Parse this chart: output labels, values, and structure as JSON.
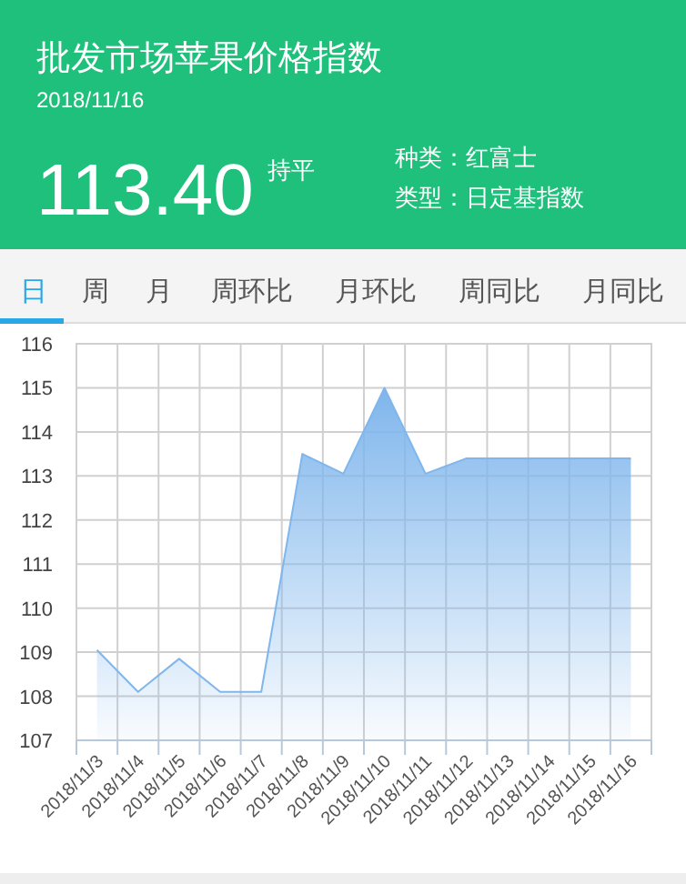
{
  "chart_data": {
    "type": "area",
    "title": "批发市场苹果价格指数",
    "subtitle": "2018/11/16",
    "annotations": [
      "113.40",
      "持平",
      "种类：红富士",
      "类型：日定基指数",
      "日",
      "周",
      "月",
      "周环比",
      "月环比",
      "周同比",
      "月同比"
    ],
    "categories": [
      "2018/11/3",
      "2018/11/4",
      "2018/11/5",
      "2018/11/6",
      "2018/11/7",
      "2018/11/8",
      "2018/11/9",
      "2018/11/10",
      "2018/11/11",
      "2018/11/12",
      "2018/11/13",
      "2018/11/14",
      "2018/11/15",
      "2018/11/16"
    ],
    "series": [
      {
        "color": "#7fb6ec",
        "values": [
          109.05,
          108.1,
          108.85,
          108.1,
          108.1,
          113.5,
          113.05,
          115.0,
          113.05,
          113.4,
          113.4,
          113.4,
          113.4,
          113.4
        ]
      }
    ],
    "ylim": [
      107,
      116
    ],
    "yticks": [
      107,
      108,
      109,
      110,
      111,
      112,
      113,
      114,
      115,
      116
    ],
    "grid": true
  }
}
